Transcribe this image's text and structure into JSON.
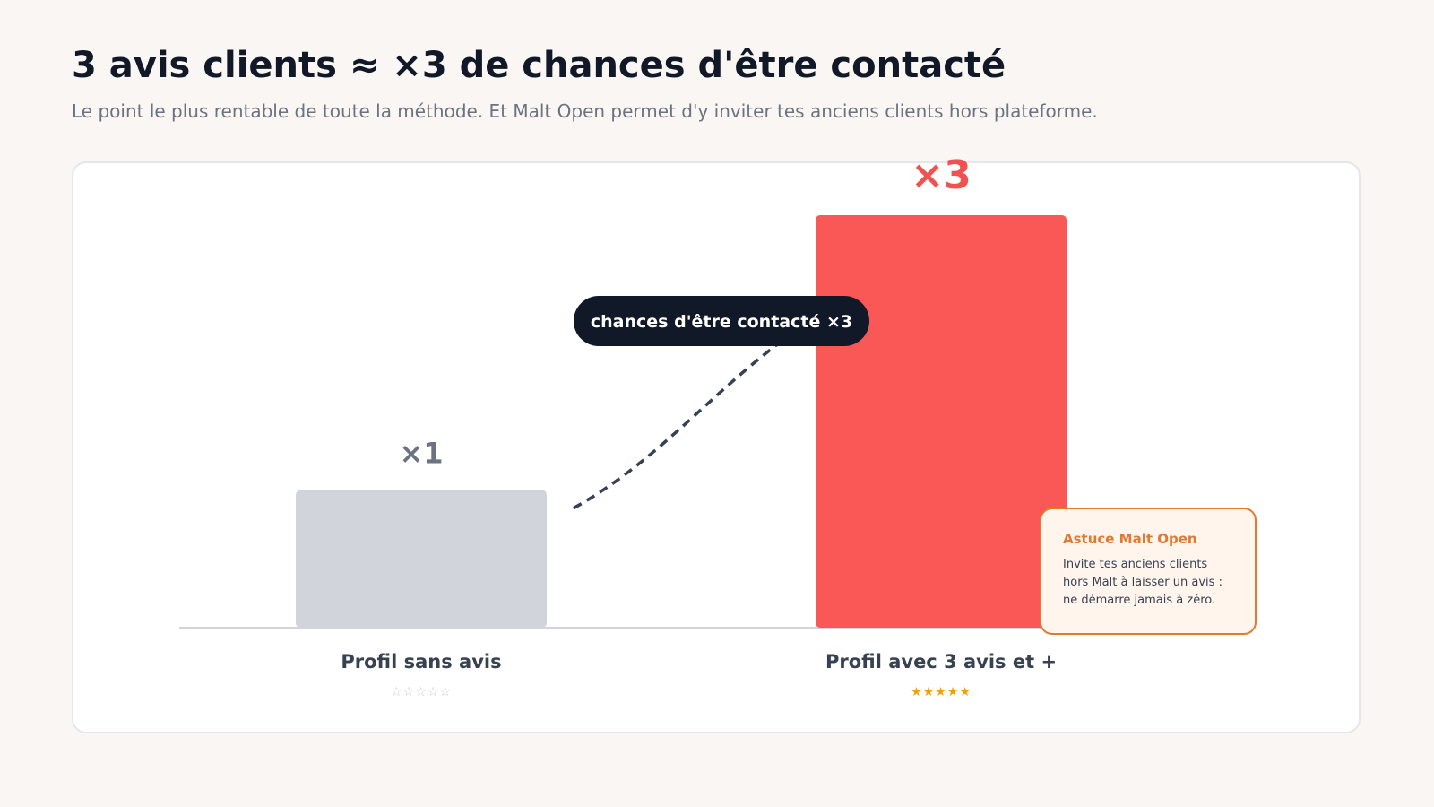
{
  "header": {
    "title": "3 avis clients ≈ ×3 de chances d'être contacté",
    "subtitle": "Le point le plus rentable de toute la méthode. Et Malt Open permet d'y inviter tes anciens clients hors plateforme."
  },
  "chart_data": {
    "type": "bar",
    "categories": [
      "Profil sans avis",
      "Profil avec 3 avis et +"
    ],
    "values": [
      1,
      3
    ],
    "value_labels": [
      "×1",
      "×3"
    ],
    "ratings": [
      "☆☆☆☆☆",
      "★★★★★"
    ],
    "ylim": [
      0,
      3
    ],
    "grid": false,
    "annotation": "chances d'être contacté ×3",
    "colors": {
      "bar_base": "#d1d5db",
      "bar_highlight": "#fa5757",
      "label_base": "#6b7280",
      "label_highlight": "#f05252",
      "stars_empty": "#c4c9d0",
      "stars_full": "#f59e0b",
      "pill": "#111827",
      "arrow": "#374151",
      "axis": "#d1d5db"
    }
  },
  "tip": {
    "title": "Astuce Malt Open",
    "text": "Invite tes anciens clients hors Malt à laisser un avis : ne démarre jamais à zéro."
  }
}
